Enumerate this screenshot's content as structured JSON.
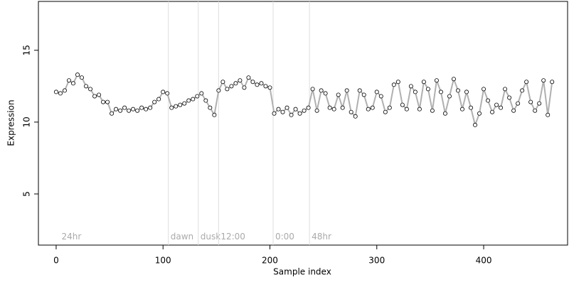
{
  "chart_data": {
    "type": "scatter",
    "xlabel": "Sample index",
    "ylabel": "Expression",
    "xlim": [
      -16.6,
      478.5
    ],
    "ylim": [
      1.44,
      18.4
    ],
    "xticks": [
      0,
      100,
      200,
      300,
      400
    ],
    "yticks": [
      5,
      10,
      15
    ],
    "series": [
      {
        "color": "#ffffff",
        "line_color": "#b0b0b0",
        "x": [
          0,
          4,
          8,
          12,
          16,
          20,
          24,
          28,
          32,
          36,
          40,
          44,
          48,
          52,
          56,
          60,
          64,
          68,
          72,
          76,
          80,
          84,
          88,
          92,
          96,
          100,
          104,
          108,
          112,
          116,
          120,
          124,
          128,
          132,
          136,
          140,
          144,
          148,
          152,
          156,
          160,
          164,
          168,
          172,
          176,
          180,
          184,
          188,
          192,
          196,
          200,
          204,
          208,
          212,
          216,
          220,
          224,
          228,
          232,
          236,
          240,
          244,
          248,
          252,
          256,
          260,
          264,
          268,
          272,
          276,
          280,
          284,
          288,
          292,
          296,
          300,
          304,
          308,
          312,
          316,
          320,
          324,
          328,
          332,
          336,
          340,
          344,
          348,
          352,
          356,
          360,
          364,
          368,
          372,
          376,
          380,
          384,
          388,
          392,
          396,
          400,
          404,
          408,
          412,
          416,
          420,
          424,
          428,
          432,
          436,
          440,
          444,
          448,
          452,
          456,
          460,
          464
        ],
        "values": [
          12.1,
          12.0,
          12.2,
          12.9,
          12.7,
          13.3,
          13.1,
          12.5,
          12.3,
          11.8,
          11.9,
          11.4,
          11.4,
          10.6,
          10.9,
          10.8,
          11.0,
          10.8,
          10.9,
          10.8,
          11.0,
          10.9,
          11.0,
          11.4,
          11.6,
          12.1,
          12.0,
          11.0,
          11.1,
          11.2,
          11.3,
          11.5,
          11.6,
          11.8,
          12.0,
          11.5,
          11.0,
          10.5,
          12.2,
          12.8,
          12.3,
          12.5,
          12.7,
          12.9,
          12.4,
          13.1,
          12.8,
          12.6,
          12.7,
          12.5,
          12.4,
          10.6,
          10.9,
          10.7,
          11.0,
          10.5,
          10.9,
          10.6,
          10.8,
          11.0,
          12.3,
          10.8,
          12.2,
          12.0,
          11.0,
          10.9,
          11.9,
          11.0,
          12.2,
          10.7,
          10.4,
          12.2,
          11.9,
          10.9,
          11.0,
          12.1,
          11.8,
          10.7,
          11.0,
          12.6,
          12.8,
          11.2,
          10.9,
          12.5,
          12.1,
          10.9,
          12.8,
          12.3,
          10.8,
          12.9,
          12.1,
          10.6,
          11.8,
          13.0,
          12.2,
          10.9,
          12.1,
          11.0,
          9.8,
          10.6,
          12.3,
          11.5,
          10.7,
          11.2,
          11.0,
          12.3,
          11.7,
          10.8,
          11.3,
          12.2,
          12.8,
          11.4,
          10.8,
          11.3,
          12.9,
          10.5,
          12.8
        ]
      }
    ],
    "annotations": [
      {
        "x": 3,
        "label": "24hr",
        "line": false
      },
      {
        "x": 105,
        "label": "dawn",
        "line": true
      },
      {
        "x": 133,
        "label": "dusk",
        "line": true
      },
      {
        "x": 152,
        "label": "12:00",
        "line": true
      },
      {
        "x": 203,
        "label": "0:00",
        "line": true
      },
      {
        "x": 237,
        "label": "48hr",
        "line": true
      }
    ],
    "annotation_y": 2.0
  }
}
